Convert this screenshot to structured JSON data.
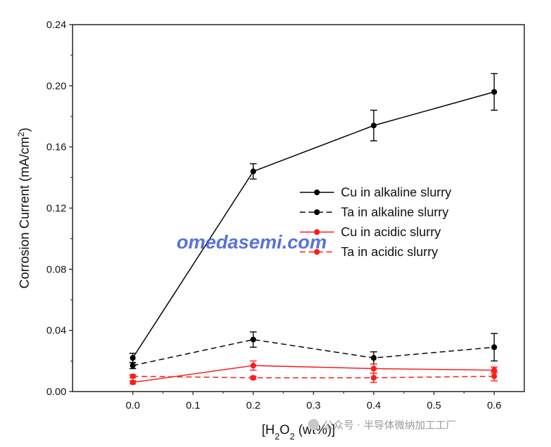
{
  "chart_data": {
    "type": "line",
    "title": "",
    "xlabel_parts": {
      "pre": "[H",
      "sub1": "2",
      "mid": "O",
      "sub2": "2",
      "post": " (wt%)]"
    },
    "ylabel_parts": {
      "pre": "Corrosion Current (mA/cm",
      "sup": "2",
      "post": ")"
    },
    "xlim": [
      -0.1,
      0.65
    ],
    "ylim": [
      0,
      0.24
    ],
    "x_ticks": [
      0.0,
      0.1,
      0.2,
      0.3,
      0.4,
      0.5,
      0.6
    ],
    "x_tick_labels": [
      "0.0",
      "0.1",
      "0.2",
      "0.3",
      "0.4",
      "0.5",
      "0.6"
    ],
    "y_ticks": [
      0.0,
      0.04,
      0.08,
      0.12,
      0.16,
      0.2,
      0.24
    ],
    "y_tick_labels": [
      "0.00",
      "0.04",
      "0.08",
      "0.12",
      "0.16",
      "0.20",
      "0.24"
    ],
    "x": [
      0.0,
      0.2,
      0.4,
      0.6
    ],
    "grid": false,
    "legend_position": "center-right",
    "series": [
      {
        "name": "Cu in alkaline slurry",
        "color": "#000000",
        "dash": "solid",
        "values": [
          0.022,
          0.144,
          0.174,
          0.196
        ],
        "errors": [
          0.003,
          0.005,
          0.01,
          0.012
        ]
      },
      {
        "name": "Ta in alkaline slurry",
        "color": "#000000",
        "dash": "dashed",
        "values": [
          0.017,
          0.034,
          0.022,
          0.029
        ],
        "errors": [
          0.002,
          0.005,
          0.004,
          0.009
        ]
      },
      {
        "name": "Cu in acidic slurry",
        "color": "#ff1a1a",
        "dash": "solid",
        "values": [
          0.006,
          0.017,
          0.015,
          0.014
        ],
        "errors": [
          0.001,
          0.003,
          0.003,
          0.002
        ]
      },
      {
        "name": "Ta in acidic slurry",
        "color": "#ff1a1a",
        "dash": "dashed",
        "values": [
          0.01,
          0.009,
          0.009,
          0.01
        ],
        "errors": [
          0.001,
          0.001,
          0.003,
          0.003
        ]
      }
    ]
  },
  "watermark": "omedasemi.com",
  "wechat_caption": "公众号 · 半导体微纳加工工厂"
}
